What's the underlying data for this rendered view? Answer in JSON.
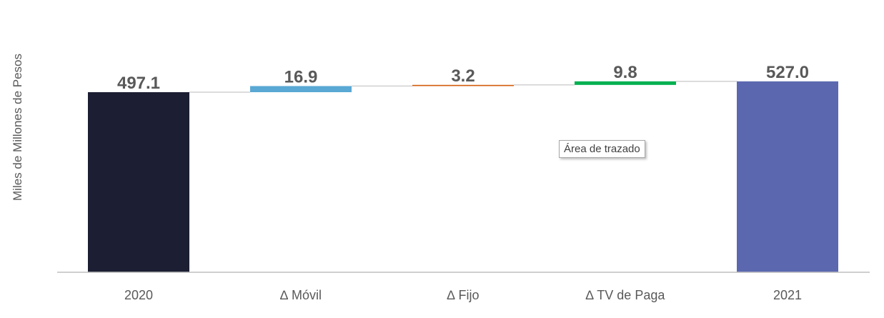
{
  "chart_data": {
    "type": "bar",
    "subtype": "waterfall",
    "ylabel": "Miles de Millones de Pesos",
    "categories": [
      "2020",
      "∆ Móvil",
      "∆ Fijo",
      "∆ TV de Paga",
      "2021"
    ],
    "values": [
      497.1,
      16.9,
      3.2,
      9.8,
      527.0
    ],
    "value_labels": [
      "497.1",
      "16.9",
      "3.2",
      "9.8",
      "527.0"
    ],
    "kinds": [
      "total",
      "increase",
      "increase",
      "increase",
      "total"
    ],
    "colors": [
      "#1c1f33",
      "#5aa8d4",
      "#d35a0b",
      "#00b050",
      "#5b68b0"
    ],
    "baseline": 0,
    "ylim": [
      0,
      527.0
    ],
    "grid": false,
    "connectors": true
  },
  "tooltip": {
    "text": "Área de trazado"
  }
}
